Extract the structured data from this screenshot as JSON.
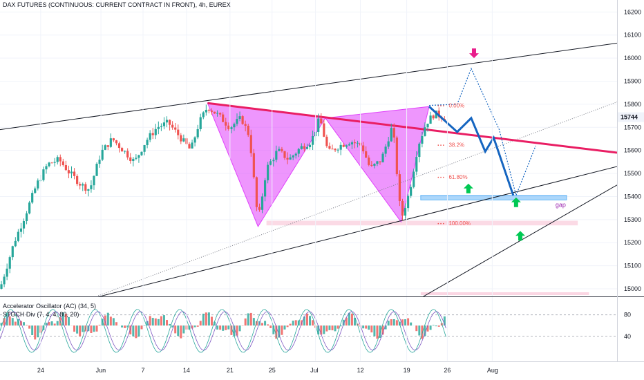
{
  "header": {
    "title": "DAX FUTURES (CONTINUOUS: CURRENT CONTRACT IN FRONT), 4h, EUREX"
  },
  "indicators": {
    "ac": "Accelerator Oscillator (AC) (34, 5)",
    "stoch": "STOCH Div (7, 4, 4, 80, 20)"
  },
  "colors": {
    "bull": "#26a69a",
    "bear": "#ef5350",
    "pattern_fill": "#e040fb",
    "neckline": "#e91e63",
    "projection": "#1565c0",
    "gap_zone": "#90caf9",
    "target_zone": "#f8bbd0",
    "arrow_up": "#00c853",
    "arrow_down": "#e91e8c"
  },
  "chart_data": {
    "type": "candlestick",
    "instrument": "DAX FUTURES",
    "timeframe": "4h",
    "price_axis": {
      "ticks": [
        16200,
        16100,
        16000,
        15900,
        15800,
        15700,
        15600,
        15500,
        15400,
        15300,
        15200,
        15100,
        15000
      ],
      "range": [
        14970,
        16240
      ]
    },
    "last_price": "15744",
    "time_axis": {
      "labels": [
        "24",
        "Jun",
        "7",
        "14",
        "21",
        "25",
        "Jul",
        "12",
        "19",
        "26",
        "Aug"
      ]
    },
    "price_path": [
      [
        0,
        15000
      ],
      [
        4,
        15080
      ],
      [
        10,
        15200
      ],
      [
        18,
        15320
      ],
      [
        26,
        15450
      ],
      [
        34,
        15540
      ],
      [
        42,
        15560
      ],
      [
        50,
        15500
      ],
      [
        58,
        15450
      ],
      [
        64,
        15430
      ],
      [
        72,
        15590
      ],
      [
        80,
        15650
      ],
      [
        88,
        15600
      ],
      [
        96,
        15550
      ],
      [
        104,
        15640
      ],
      [
        112,
        15700
      ],
      [
        120,
        15720
      ],
      [
        128,
        15660
      ],
      [
        136,
        15600
      ],
      [
        142,
        15720
      ],
      [
        148,
        15790
      ],
      [
        156,
        15750
      ],
      [
        164,
        15700
      ],
      [
        172,
        15740
      ],
      [
        178,
        15660
      ],
      [
        184,
        15290
      ],
      [
        190,
        15520
      ],
      [
        198,
        15600
      ],
      [
        206,
        15560
      ],
      [
        214,
        15610
      ],
      [
        222,
        15640
      ],
      [
        228,
        15740
      ],
      [
        234,
        15590
      ],
      [
        242,
        15620
      ],
      [
        250,
        15640
      ],
      [
        258,
        15620
      ],
      [
        264,
        15520
      ],
      [
        272,
        15560
      ],
      [
        280,
        15710
      ],
      [
        286,
        15300
      ],
      [
        292,
        15420
      ],
      [
        298,
        15620
      ],
      [
        304,
        15720
      ],
      [
        310,
        15760
      ],
      [
        318,
        15740
      ]
    ],
    "pattern": {
      "name": "harmonic",
      "points": [
        {
          "t": 148,
          "price": 15805
        },
        {
          "t": 184,
          "price": 15270
        },
        {
          "t": 232,
          "price": 15740
        },
        {
          "t": 286,
          "price": 15290
        },
        {
          "t": 306,
          "price": 15790
        }
      ]
    },
    "neckline": [
      [
        148,
        15805
      ],
      [
        440,
        15590
      ]
    ],
    "channel_upper": [
      [
        0,
        15690
      ],
      [
        440,
        16065
      ]
    ],
    "channel_lower": [
      [
        60,
        14950
      ],
      [
        440,
        15530
      ]
    ],
    "channel_lower_2": [
      [
        300,
        14960
      ],
      [
        440,
        15450
      ]
    ],
    "dotted_trendline": [
      [
        70,
        14970
      ],
      [
        440,
        15810
      ]
    ],
    "fib_levels": [
      {
        "label": "0.00%",
        "price": 15795
      },
      {
        "label": "38.2%",
        "price": 15625
      },
      {
        "label": "61.80%",
        "price": 15485
      },
      {
        "label": "100.00%",
        "price": 15285
      }
    ],
    "projection_path": [
      [
        306,
        15790
      ],
      [
        326,
        15680
      ],
      [
        336,
        15740
      ],
      [
        346,
        15595
      ],
      [
        352,
        15655
      ],
      [
        366,
        15405
      ]
    ],
    "projection_dotted": [
      [
        306,
        15795
      ],
      [
        326,
        15800
      ],
      [
        336,
        15955
      ],
      [
        356,
        15690
      ],
      [
        368,
        15405
      ],
      [
        382,
        15620
      ]
    ],
    "zones": [
      {
        "label": "gap",
        "from_t": 300,
        "to_t": 404,
        "price_low": 15385,
        "price_high": 15405
      },
      {
        "label": "",
        "from_t": 190,
        "to_t": 412,
        "price_low": 15275,
        "price_high": 15295
      }
    ],
    "markers": [
      {
        "type": "arrow-down",
        "t": 338,
        "price": 16000
      },
      {
        "type": "arrow-up",
        "t": 334,
        "price": 15435
      },
      {
        "type": "arrow-up",
        "t": 368,
        "price": 15375
      },
      {
        "type": "arrow-up",
        "t": 371,
        "price": 15230
      }
    ],
    "oscillator": {
      "ticks": [
        80,
        40
      ],
      "range": [
        0,
        100
      ]
    }
  }
}
